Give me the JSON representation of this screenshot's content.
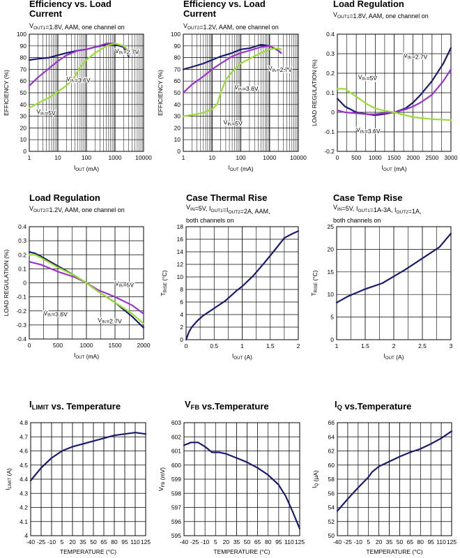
{
  "page": {
    "width": 660,
    "height": 800
  },
  "colors": {
    "navy": "#1a1a6e",
    "purple": "#9933cc",
    "lime": "#99dd33"
  },
  "chart_data": [
    {
      "type": "line",
      "title": "Efficiency vs. Load Current",
      "subtitle": "VOUT1=1.8V, AAM, one channel on",
      "xlabel": "IOUT (mA)",
      "ylabel": "EFFICIENCY (%)",
      "xscale": "log",
      "xlim": [
        1,
        10000
      ],
      "ylim": [
        0,
        100
      ],
      "xticks": [
        1,
        10,
        100,
        1000,
        10000
      ],
      "xtick_labels": [
        "1",
        "10",
        "100",
        "1000",
        "10000"
      ],
      "yticks": [
        0,
        10,
        20,
        30,
        40,
        50,
        60,
        70,
        80,
        90,
        100
      ],
      "ytick_labels": [
        "0",
        "10",
        "20",
        "30",
        "40",
        "50",
        "60",
        "70",
        "80",
        "90",
        "100"
      ],
      "grid": true,
      "series": [
        {
          "name": "VIN=2.7V",
          "color": "navy",
          "x": [
            1,
            2,
            5,
            10,
            20,
            50,
            100,
            200,
            500,
            1000,
            2000,
            3000
          ],
          "y": [
            78,
            79,
            80,
            82,
            84,
            86,
            87,
            89,
            91,
            91,
            89,
            81
          ]
        },
        {
          "name": "VIN=3.6V",
          "color": "purple",
          "x": [
            1,
            2,
            5,
            10,
            20,
            50,
            100,
            200,
            500,
            1000,
            2000,
            3000
          ],
          "y": [
            56,
            63,
            71,
            77,
            82,
            86,
            87,
            89,
            92,
            92,
            90,
            82
          ]
        },
        {
          "name": "VIN=5V",
          "color": "lime",
          "x": [
            1,
            2,
            5,
            10,
            20,
            40,
            60,
            100,
            200,
            500,
            1000,
            2000,
            3000
          ],
          "y": [
            37,
            41,
            46,
            51,
            56,
            64,
            72,
            78,
            84,
            90,
            92,
            90,
            86
          ]
        }
      ],
      "annotations": [
        {
          "text": "VIN=2.7V",
          "x": 1000,
          "y": 84
        },
        {
          "text": "VIN=3.6V",
          "x": 20,
          "y": 60
        },
        {
          "text": "VIN=5V",
          "x": 1.8,
          "y": 32
        }
      ]
    },
    {
      "type": "line",
      "title": "Efficiency vs. Load Current",
      "subtitle": "VOUT2=1.2V, AAM, one channel on",
      "xlabel": "IOUT (mA)",
      "ylabel": "EFFICIENCY (%)",
      "xscale": "log",
      "xlim": [
        1,
        10000
      ],
      "ylim": [
        0,
        100
      ],
      "xticks": [
        1,
        10,
        100,
        1000,
        10000
      ],
      "xtick_labels": [
        "1",
        "10",
        "100",
        "1000",
        "10000"
      ],
      "yticks": [
        0,
        10,
        20,
        30,
        40,
        50,
        60,
        70,
        80,
        90,
        100
      ],
      "ytick_labels": [
        "0",
        "10",
        "20",
        "30",
        "40",
        "50",
        "60",
        "70",
        "80",
        "90",
        "100"
      ],
      "grid": true,
      "series": [
        {
          "name": "VIN=2.7V",
          "color": "navy",
          "x": [
            1,
            2,
            5,
            10,
            20,
            50,
            100,
            200,
            500,
            1000,
            2000,
            2500
          ],
          "y": [
            70,
            72,
            75,
            78,
            81,
            84,
            87,
            88,
            91,
            90,
            86,
            84
          ]
        },
        {
          "name": "VIN=3.6V",
          "color": "purple",
          "x": [
            1,
            2,
            5,
            10,
            20,
            50,
            100,
            200,
            500,
            1000,
            2000,
            2500
          ],
          "y": [
            50,
            57,
            64,
            70,
            75,
            81,
            84,
            86,
            89,
            90,
            86,
            84
          ]
        },
        {
          "name": "VIN=5V",
          "color": "lime",
          "x": [
            1,
            2,
            5,
            10,
            15,
            20,
            30,
            50,
            100,
            200,
            500,
            1000,
            2000,
            2500
          ],
          "y": [
            30,
            31,
            33,
            36,
            40,
            50,
            61,
            68,
            75,
            79,
            84,
            87,
            88,
            87
          ]
        }
      ],
      "annotations": [
        {
          "text": "VIN=2.7V",
          "x": 900,
          "y": 69
        },
        {
          "text": "VIN=3.6V",
          "x": 60,
          "y": 53
        },
        {
          "text": "VIN=5V",
          "x": 25,
          "y": 23
        }
      ]
    },
    {
      "type": "line",
      "title": "Load Regulation",
      "subtitle": "VOUT1=1.8V, AAM, one channel on",
      "xlabel": "IOUT (mA)",
      "ylabel": "LOAD REGULATION (%)",
      "xlim": [
        0,
        3000
      ],
      "ylim": [
        -0.2,
        0.4
      ],
      "xticks": [
        0,
        500,
        1000,
        1500,
        2000,
        2500,
        3000
      ],
      "xtick_labels": [
        "0",
        "500",
        "1000",
        "1500",
        "2000",
        "2500",
        "3000"
      ],
      "yticks": [
        -0.2,
        -0.1,
        0,
        0.1,
        0.2,
        0.3,
        0.4
      ],
      "ytick_labels": [
        "-0.2",
        "-0.1",
        "0",
        "0.1",
        "0.2",
        "0.3",
        "0.4"
      ],
      "grid": true,
      "series": [
        {
          "name": "VIN=2.7V",
          "color": "navy",
          "x": [
            0,
            200,
            500,
            800,
            1000,
            1200,
            1500,
            1800,
            2000,
            2200,
            2500,
            2800,
            3000
          ],
          "y": [
            0.07,
            0.03,
            0.0,
            -0.01,
            -0.015,
            -0.01,
            0.0,
            0.02,
            0.05,
            0.09,
            0.16,
            0.25,
            0.33
          ]
        },
        {
          "name": "VIN=3.6V",
          "color": "purple",
          "x": [
            0,
            200,
            500,
            800,
            1000,
            1200,
            1500,
            1800,
            2000,
            2200,
            2500,
            2800,
            3000
          ],
          "y": [
            0.01,
            0.0,
            -0.005,
            -0.01,
            -0.01,
            -0.005,
            0.0,
            0.015,
            0.03,
            0.05,
            0.09,
            0.16,
            0.22
          ]
        },
        {
          "name": "VIN=5V",
          "color": "lime",
          "x": [
            0,
            200,
            500,
            800,
            1000,
            1200,
            1500,
            1800,
            2000,
            2500,
            3000
          ],
          "y": [
            0.12,
            0.12,
            0.08,
            0.04,
            0.02,
            0.01,
            0.0,
            -0.015,
            -0.025,
            -0.035,
            -0.04
          ]
        }
      ],
      "annotations": [
        {
          "text": "VIN=2.7V",
          "x": 1750,
          "y": 0.28
        },
        {
          "text": "VIN=5V",
          "x": 550,
          "y": 0.17
        },
        {
          "text": "VIN=3.6V",
          "x": 500,
          "y": -0.1
        }
      ]
    },
    {
      "type": "line",
      "title": "Load Regulation",
      "subtitle": "VOUT2=1.2V, AAM, one channel on",
      "xlabel": "IOUT (mA)",
      "ylabel": "LOAD REGULATION (%)",
      "xlim": [
        0,
        2000
      ],
      "ylim": [
        -0.4,
        0.4
      ],
      "xticks": [
        0,
        500,
        1000,
        1500,
        2000
      ],
      "xtick_labels": [
        "0",
        "500",
        "1000",
        "1500",
        "2000"
      ],
      "yticks": [
        -0.4,
        -0.3,
        -0.2,
        -0.1,
        0,
        0.1,
        0.2,
        0.3,
        0.4
      ],
      "ytick_labels": [
        "-0.4",
        "-0.3",
        "-0.2",
        "-0.1",
        "0",
        "0.1",
        "0.2",
        "0.3",
        "0.4"
      ],
      "grid": true,
      "series": [
        {
          "name": "VIN=2.7V",
          "color": "navy",
          "x": [
            0,
            100,
            200,
            500,
            800,
            1000,
            1200,
            1500,
            1800,
            2000
          ],
          "y": [
            0.22,
            0.21,
            0.19,
            0.12,
            0.05,
            0.0,
            -0.06,
            -0.14,
            -0.24,
            -0.32
          ]
        },
        {
          "name": "VIN=3.6V",
          "color": "purple",
          "x": [
            0,
            100,
            200,
            500,
            800,
            1000,
            1200,
            1500,
            1800,
            2000
          ],
          "y": [
            0.15,
            0.14,
            0.13,
            0.08,
            0.04,
            0.0,
            -0.05,
            -0.1,
            -0.16,
            -0.22
          ]
        },
        {
          "name": "VIN=5V",
          "color": "lime",
          "x": [
            0,
            100,
            200,
            500,
            800,
            1000,
            1200,
            1500,
            1800,
            2000
          ],
          "y": [
            0.2,
            0.2,
            0.18,
            0.11,
            0.05,
            0.0,
            -0.06,
            -0.14,
            -0.22,
            -0.29
          ]
        }
      ],
      "annotations": [
        {
          "text": "VIN=5V",
          "x": 1500,
          "y": -0.02
        },
        {
          "text": "VIN=3.6V",
          "x": 250,
          "y": -0.23
        },
        {
          "text": "VIN=2.7V",
          "x": 1200,
          "y": -0.28
        }
      ]
    },
    {
      "type": "line",
      "title": "Case Thermal Rise",
      "subtitle": "VIN=5V, IOUT1=IOUT2=2A, AAM, both channels on",
      "xlabel": "IOUT (A)",
      "ylabel": "TRISE (°C)",
      "xlim": [
        0,
        2
      ],
      "ylim": [
        0,
        18
      ],
      "xticks": [
        0,
        0.5,
        1,
        1.5,
        2
      ],
      "xtick_labels": [
        "0",
        "0.5",
        "1",
        "1.5",
        "2"
      ],
      "yticks": [
        0,
        2,
        4,
        6,
        8,
        10,
        12,
        14,
        16,
        18
      ],
      "ytick_labels": [
        "0",
        "2",
        "4",
        "6",
        "8",
        "10",
        "12",
        "14",
        "16",
        "18"
      ],
      "grid": true,
      "series": [
        {
          "color": "navy",
          "x": [
            0,
            0.05,
            0.1,
            0.2,
            0.3,
            0.5,
            0.7,
            0.9,
            1.0,
            1.2,
            1.4,
            1.6,
            1.75,
            1.9,
            2.0
          ],
          "y": [
            0,
            1.2,
            2,
            3,
            3.8,
            5,
            6.2,
            7.8,
            8.5,
            10.2,
            12.3,
            14.5,
            16.2,
            16.9,
            17.3
          ]
        }
      ],
      "annotations": []
    },
    {
      "type": "line",
      "title": "Case Temp Rise",
      "subtitle": "VIN=5V, IOUT1=1A-3A, IOUT2=1A, both channels on",
      "xlabel": "IOUT (A)",
      "ylabel": "TRISE (°C)",
      "xlim": [
        1,
        3
      ],
      "ylim": [
        0,
        25
      ],
      "xticks": [
        1,
        1.5,
        2,
        2.5,
        3
      ],
      "xtick_labels": [
        "1",
        "1.5",
        "2",
        "2.5",
        "3"
      ],
      "yticks": [
        0,
        5,
        10,
        15,
        20,
        25
      ],
      "ytick_labels": [
        "0",
        "5",
        "10",
        "15",
        "20",
        "25"
      ],
      "grid": true,
      "series": [
        {
          "color": "navy",
          "x": [
            1,
            1.2,
            1.5,
            1.8,
            2.0,
            2.2,
            2.5,
            2.8,
            3.0
          ],
          "y": [
            8.2,
            9.6,
            11.2,
            12.5,
            14,
            15.5,
            18,
            20.5,
            23.5
          ]
        }
      ],
      "annotations": []
    },
    {
      "type": "line",
      "title": "ILIMIT vs. Temperature",
      "xlabel": "TEMPERATURE (°C)",
      "ylabel": "ILIMIT (A)",
      "xlim": [
        -40,
        125
      ],
      "ylim": [
        4,
        4.8
      ],
      "xticks": [
        -40,
        -25,
        -10,
        5,
        20,
        35,
        50,
        65,
        80,
        95,
        110,
        125
      ],
      "xtick_labels": [
        "-40",
        "-25",
        "-10",
        "5",
        "20",
        "35",
        "50",
        "65",
        "80",
        "95",
        "110",
        "125"
      ],
      "yticks": [
        4,
        4.1,
        4.2,
        4.3,
        4.4,
        4.5,
        4.6,
        4.7,
        4.8
      ],
      "ytick_labels": [
        "4",
        "4.1",
        "4.2",
        "4.3",
        "4.4",
        "4.5",
        "4.6",
        "4.7",
        "4.8"
      ],
      "grid": true,
      "series": [
        {
          "color": "navy",
          "x": [
            -40,
            -25,
            -10,
            5,
            20,
            35,
            50,
            65,
            80,
            95,
            110,
            125
          ],
          "y": [
            4.39,
            4.48,
            4.55,
            4.6,
            4.63,
            4.65,
            4.67,
            4.69,
            4.71,
            4.72,
            4.73,
            4.72
          ]
        }
      ],
      "annotations": []
    },
    {
      "type": "line",
      "title": "VFB vs.Temperature",
      "xlabel": "TEMPERATURE (°C)",
      "ylabel": "VFB (mV)",
      "xlim": [
        -40,
        125
      ],
      "ylim": [
        595,
        603
      ],
      "xticks": [
        -40,
        -25,
        -10,
        5,
        20,
        35,
        50,
        65,
        80,
        95,
        110,
        125
      ],
      "xtick_labels": [
        "-40",
        "-25",
        "-10",
        "5",
        "20",
        "35",
        "50",
        "65",
        "80",
        "95",
        "110",
        "125"
      ],
      "yticks": [
        595,
        596,
        597,
        598,
        599,
        600,
        601,
        602,
        603
      ],
      "ytick_labels": [
        "595",
        "596",
        "597",
        "598",
        "599",
        "600",
        "601",
        "602",
        "603"
      ],
      "grid": true,
      "series": [
        {
          "color": "navy",
          "x": [
            -40,
            -30,
            -20,
            -10,
            0,
            10,
            20,
            35,
            50,
            65,
            80,
            95,
            105,
            115,
            125
          ],
          "y": [
            601.4,
            601.6,
            601.6,
            601.3,
            600.9,
            600.9,
            600.8,
            600.5,
            600.2,
            599.8,
            599.3,
            598.6,
            597.8,
            596.7,
            595.5
          ]
        }
      ],
      "annotations": []
    },
    {
      "type": "line",
      "title": "IQ vs.Temperature",
      "xlabel": "TEMPERATURE (°C)",
      "ylabel": "IQ (µA)",
      "xlim": [
        -40,
        125
      ],
      "ylim": [
        50,
        66
      ],
      "xticks": [
        -40,
        -25,
        -10,
        5,
        20,
        35,
        50,
        65,
        80,
        95,
        110,
        125
      ],
      "xtick_labels": [
        "-40",
        "-25",
        "-10",
        "5",
        "20",
        "35",
        "50",
        "65",
        "80",
        "95",
        "110",
        "125"
      ],
      "yticks": [
        50,
        52,
        54,
        56,
        58,
        60,
        62,
        64,
        66
      ],
      "ytick_labels": [
        "50",
        "52",
        "54",
        "56",
        "58",
        "60",
        "62",
        "64",
        "66"
      ],
      "grid": true,
      "series": [
        {
          "color": "navy",
          "x": [
            -40,
            -25,
            -10,
            5,
            10,
            20,
            35,
            50,
            65,
            80,
            95,
            110,
            125
          ],
          "y": [
            53.5,
            55.2,
            56.8,
            58.3,
            59,
            59.8,
            60.5,
            61.2,
            61.8,
            62.3,
            63,
            63.8,
            64.8
          ]
        }
      ],
      "annotations": []
    }
  ]
}
